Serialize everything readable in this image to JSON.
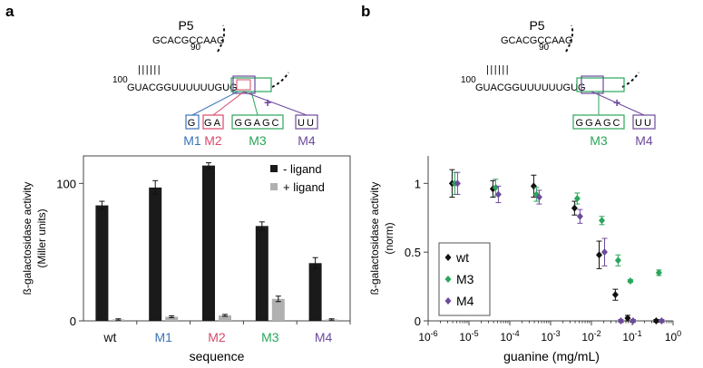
{
  "panels": {
    "a": {
      "letter": "a"
    },
    "b": {
      "letter": "b"
    }
  },
  "diagram": {
    "stem_label": "P5",
    "num_90": "90",
    "num_100": "100",
    "top_row": "GCACGCCAAG",
    "bottom_row": "GUACGGUUUUUUGUG",
    "pairs": "||||||",
    "plus": "+",
    "boxes_a": [
      {
        "text": "G",
        "label": "M1",
        "color": "#3b73b8"
      },
      {
        "text": "GA",
        "label": "M2",
        "color": "#d94a6b"
      },
      {
        "text": "GGAGC",
        "label": "M3",
        "color": "#2aa65a"
      },
      {
        "text": "UU",
        "label": "M4",
        "color": "#6c4a9c"
      }
    ],
    "boxes_b": [
      {
        "text": "GGAGC",
        "label": "M3",
        "color": "#2aa65a"
      },
      {
        "text": "UU",
        "label": "M4",
        "color": "#6c4a9c"
      }
    ]
  },
  "chart_data": [
    {
      "type": "bar",
      "title": "",
      "xlabel": "sequence",
      "ylabel": "ß-galactosidase activity (Miller units)",
      "ylabel_lines": [
        "ß-galactosidase activity",
        "(Miller units)"
      ],
      "ylim": [
        0,
        120
      ],
      "yticks": [
        0,
        100
      ],
      "categories": [
        "wt",
        "M1",
        "M2",
        "M3",
        "M4"
      ],
      "category_colors": [
        "#111111",
        "#3b73b8",
        "#d94a6b",
        "#2aa65a",
        "#6c4a9c"
      ],
      "legend_position": "top-right",
      "series": [
        {
          "name": "- ligand",
          "color": "#1a1a1a",
          "values": [
            84,
            97,
            113,
            69,
            42
          ],
          "errors": [
            3,
            5,
            2,
            3,
            4
          ]
        },
        {
          "name": "+ ligand",
          "color": "#b0b0b0",
          "values": [
            1,
            3,
            4,
            16,
            1
          ],
          "errors": [
            0.5,
            0.7,
            0.7,
            2,
            0.5
          ]
        }
      ]
    },
    {
      "type": "scatter",
      "title": "",
      "xlabel": "guanine (mg/mL)",
      "ylabel": "ß-galactosidase activity (norm)",
      "ylabel_lines": [
        "ß-galactosidase activity",
        "(norm)"
      ],
      "xscale": "log",
      "xlim": [
        1e-06,
        1
      ],
      "ylim": [
        0,
        1.2
      ],
      "yticks": [
        0,
        0.5,
        1
      ],
      "xtick_exponents": [
        "-6",
        "-5",
        "-4",
        "-3",
        "-2",
        "-1",
        "0"
      ],
      "xtick_base": "10",
      "legend_position": "bottom-left",
      "series": [
        {
          "name": "wt",
          "color": "#111111",
          "marker": "diamond",
          "x": [
            4.5e-06,
            4.5e-05,
            0.00045,
            0.0045,
            0.018,
            0.045,
            0.09,
            0.45
          ],
          "y": [
            1.0,
            0.96,
            0.98,
            0.82,
            0.48,
            0.19,
            0.02,
            0.0
          ],
          "err": [
            0.1,
            0.06,
            0.08,
            0.05,
            0.1,
            0.04,
            0.02,
            0.01
          ]
        },
        {
          "name": "M3",
          "color": "#2aa65a",
          "marker": "diamond",
          "x": [
            4.5e-06,
            4.5e-05,
            0.00045,
            0.0045,
            0.018,
            0.045,
            0.09,
            0.45
          ],
          "y": [
            1.0,
            0.97,
            0.92,
            0.89,
            0.73,
            0.44,
            0.29,
            0.35
          ],
          "err": [
            0.08,
            0.06,
            0.05,
            0.04,
            0.03,
            0.04,
            0.01,
            0.02
          ]
        },
        {
          "name": "M4",
          "color": "#6c4a9c",
          "marker": "diamond",
          "x": [
            4.5e-06,
            4.5e-05,
            0.00045,
            0.0045,
            0.018,
            0.045,
            0.09,
            0.45
          ],
          "y": [
            1.0,
            0.92,
            0.9,
            0.76,
            0.5,
            0.0,
            0.0,
            0.0
          ],
          "err": [
            0.08,
            0.06,
            0.05,
            0.05,
            0.1,
            0.01,
            0.01,
            0.01
          ]
        }
      ]
    }
  ]
}
